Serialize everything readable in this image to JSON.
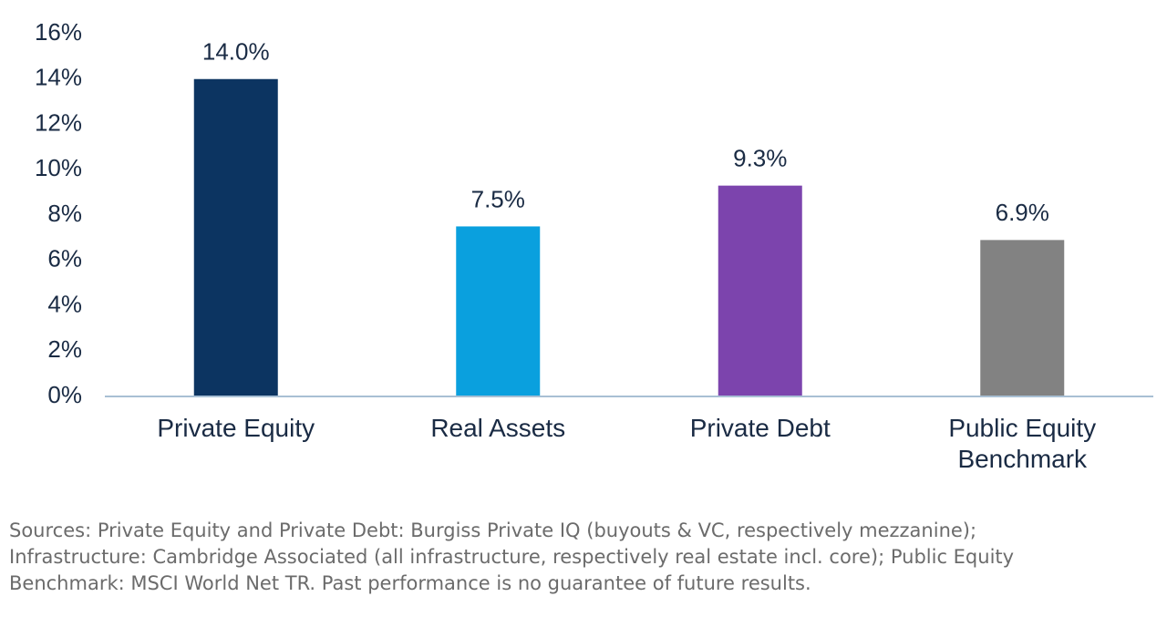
{
  "chart_data": {
    "type": "bar",
    "categories": [
      "Private Equity",
      "Real Assets",
      "Private Debt",
      "Public Equity Benchmark"
    ],
    "values": [
      14.0,
      7.5,
      9.3,
      6.9
    ],
    "value_labels": [
      "14.0%",
      "7.5%",
      "9.3%",
      "6.9%"
    ],
    "colors": [
      "#0c3461",
      "#0aa0de",
      "#7c44ad",
      "#828282"
    ],
    "ylim": [
      0,
      16
    ],
    "yticks": [
      {
        "value": 0,
        "label": "0%"
      },
      {
        "value": 2,
        "label": "2%"
      },
      {
        "value": 4,
        "label": "4%"
      },
      {
        "value": 6,
        "label": "6%"
      },
      {
        "value": 8,
        "label": "8%"
      },
      {
        "value": 10,
        "label": "10%"
      },
      {
        "value": 12,
        "label": "12%"
      },
      {
        "value": 14,
        "label": "14%"
      },
      {
        "value": 16,
        "label": "16%"
      }
    ],
    "grid": false,
    "note": "Sources: Private Equity and Private Debt: Burgiss Private IQ (buyouts & VC, respectively mezzanine); Infrastructure: Cambridge Associated (all infrastructure, respectively real estate incl. core); Public Equity Benchmark: MSCI World Net TR. Past performance is no guarantee of future results."
  }
}
